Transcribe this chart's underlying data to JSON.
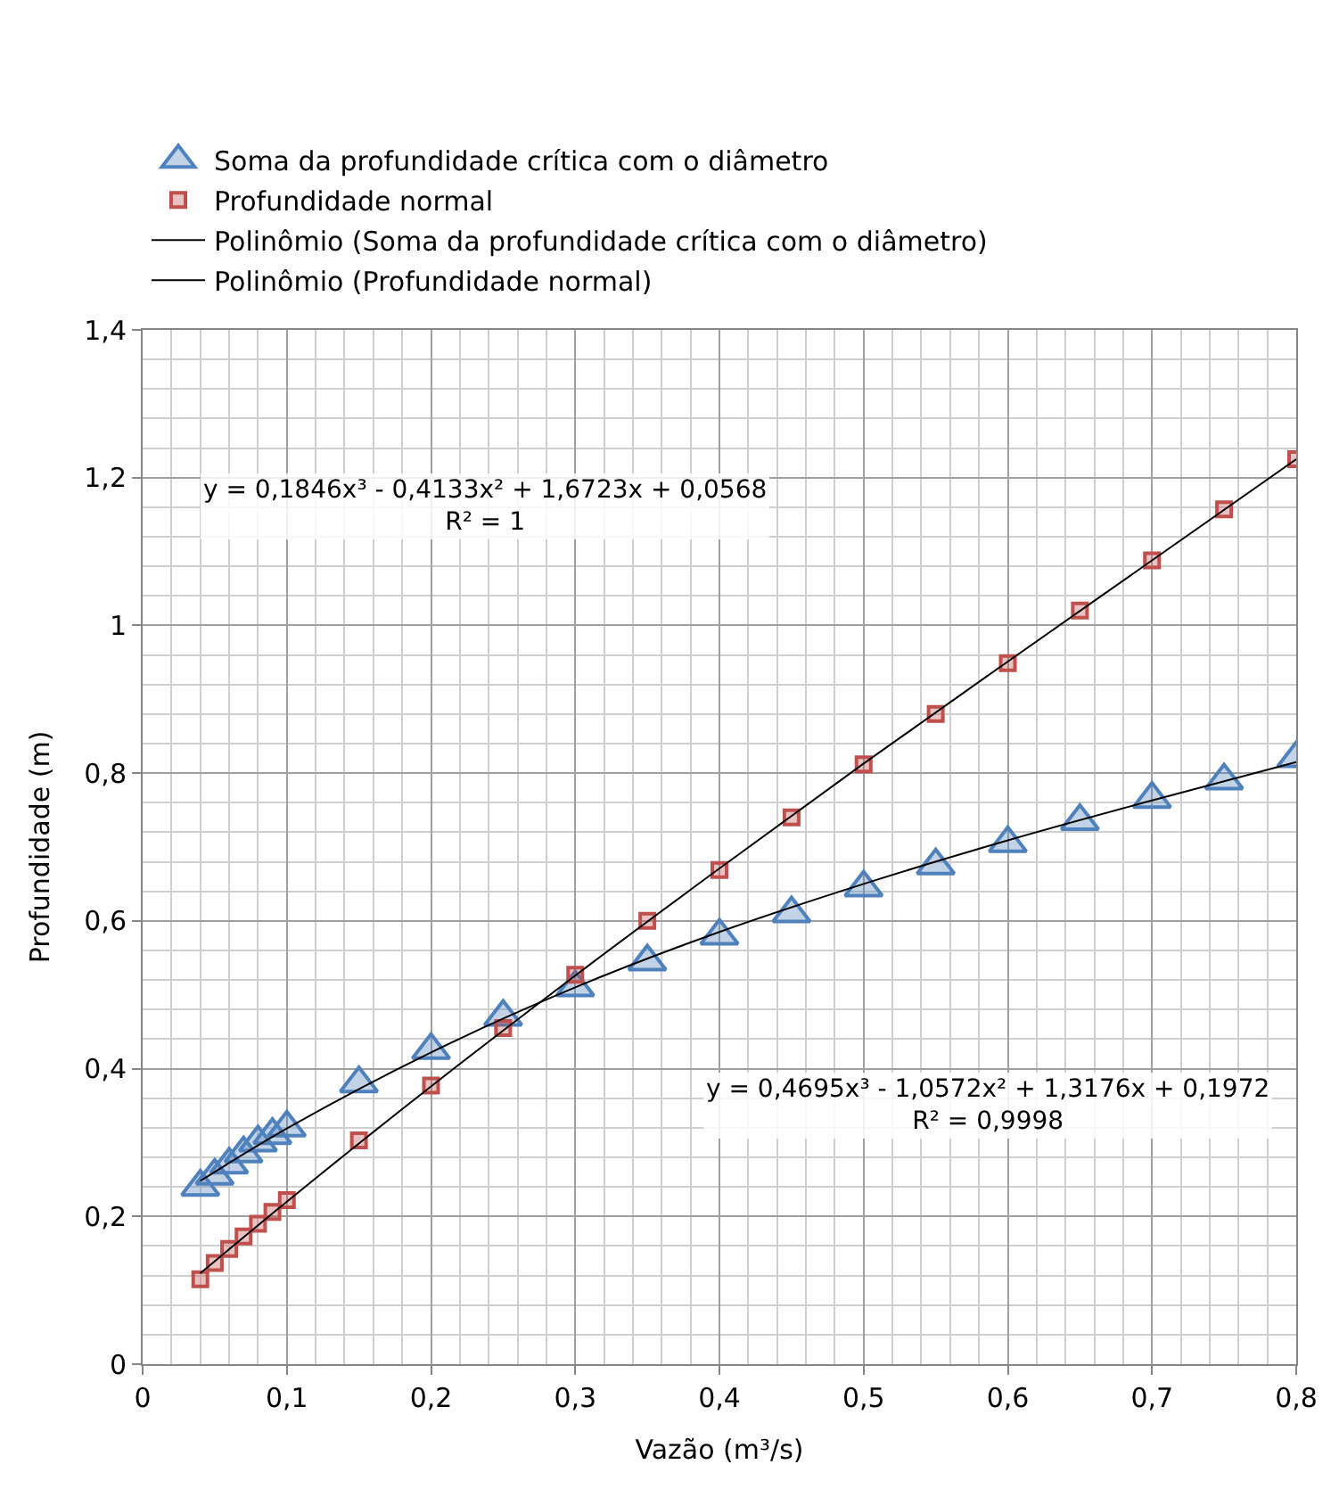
{
  "chart_data": {
    "type": "scatter",
    "xlabel": "Vazão (m³/s)",
    "ylabel": "Profundidade (m)",
    "x": [
      0.04,
      0.05,
      0.06,
      0.07,
      0.08,
      0.09,
      0.1,
      0.15,
      0.2,
      0.25,
      0.3,
      0.35,
      0.4,
      0.45,
      0.5,
      0.55,
      0.6,
      0.65,
      0.7,
      0.75,
      0.8
    ],
    "series": [
      {
        "name": "Soma da profundidade crítica com o diâmetro",
        "color": "#4f81bd",
        "marker": "triangle",
        "values": [
          0.24,
          0.255,
          0.27,
          0.285,
          0.3,
          0.31,
          0.32,
          0.38,
          0.425,
          0.47,
          0.51,
          0.545,
          0.58,
          0.61,
          0.645,
          0.675,
          0.705,
          0.735,
          0.765,
          0.79,
          0.82
        ]
      },
      {
        "name": "Profundidade normal",
        "color": "#c0504d",
        "marker": "square",
        "values": [
          0.115,
          0.137,
          0.156,
          0.173,
          0.19,
          0.206,
          0.222,
          0.303,
          0.377,
          0.455,
          0.527,
          0.6,
          0.669,
          0.74,
          0.812,
          0.88,
          0.949,
          1.02,
          1.088,
          1.157,
          1.225
        ]
      },
      {
        "name": "Polinômio (Soma da profundidade crítica com o diâmetro)",
        "type": "line",
        "color": "#000000",
        "marker": "none",
        "x": [
          0.04,
          0.1,
          0.2,
          0.3,
          0.4,
          0.5,
          0.6,
          0.7,
          0.8
        ],
        "values": [
          0.248,
          0.319,
          0.422,
          0.51,
          0.585,
          0.65,
          0.709,
          0.763,
          0.815
        ]
      },
      {
        "name": "Polinômio (Profundidade normal)",
        "type": "line",
        "color": "#000000",
        "marker": "none",
        "x": [
          0.04,
          0.1,
          0.2,
          0.3,
          0.4,
          0.5,
          0.6,
          0.7,
          0.8
        ],
        "values": [
          0.123,
          0.22,
          0.376,
          0.526,
          0.671,
          0.813,
          0.951,
          1.088,
          1.225
        ]
      }
    ],
    "xlim": [
      0,
      0.8
    ],
    "ylim": [
      0,
      1.4
    ],
    "xticks": [
      0,
      {
        "value": 0.1,
        "label": "0,1"
      },
      {
        "value": 0.2,
        "label": "0,2"
      },
      {
        "value": 0.3,
        "label": "0,3"
      },
      {
        "value": 0.4,
        "label": "0,4"
      },
      {
        "value": 0.5,
        "label": "0,5"
      },
      {
        "value": 0.6,
        "label": "0,6"
      },
      {
        "value": 0.7,
        "label": "0,7"
      },
      {
        "value": 0.8,
        "label": "0,8"
      }
    ],
    "yticks": [
      0,
      {
        "value": 0.2,
        "label": "0,2"
      },
      {
        "value": 0.4,
        "label": "0,4"
      },
      {
        "value": 0.6,
        "label": "0,6"
      },
      {
        "value": 0.8,
        "label": "0,8"
      },
      1,
      {
        "value": 1.2,
        "label": "1,2"
      },
      {
        "value": 1.4,
        "label": "1,4"
      }
    ],
    "grid": true,
    "legend": "top left",
    "annotations": [
      "y = 0,1846x³ - 0,4133x² + 1,6723x + 0,0568\nR² = 1",
      "y = 0,4695x³ - 1,0572x² + 1,3176x + 0,1972\nR² = 0,9998"
    ]
  }
}
